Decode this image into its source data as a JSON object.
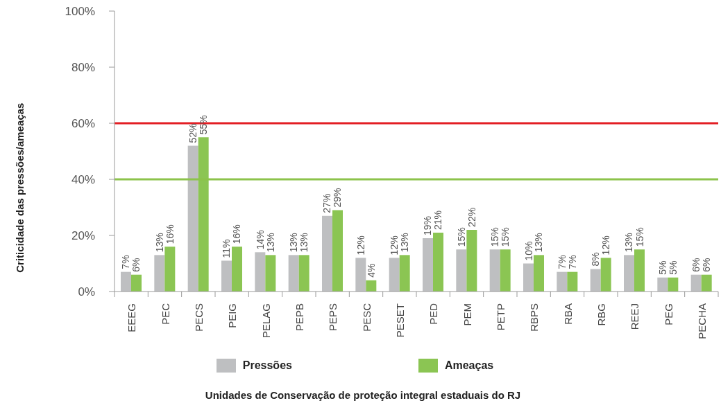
{
  "chart_data": {
    "type": "bar",
    "xlabel": "Unidades de Conservação de proteção integral estaduais do RJ",
    "ylabel": "Criticidade das pressões/ameaças",
    "categories": [
      "EEEG",
      "PEC",
      "PECS",
      "PEIG",
      "PELAG",
      "PEPB",
      "PEPS",
      "PESC",
      "PESET",
      "PED",
      "PEM",
      "PETP",
      "RBPS",
      "RBA",
      "RBG",
      "REEJ",
      "PEG",
      "PECHA"
    ],
    "series": [
      {
        "name": "Pressões",
        "color": "#bebfc1",
        "values": [
          7,
          13,
          52,
          11,
          14,
          13,
          27,
          12,
          12,
          19,
          15,
          15,
          10,
          7,
          8,
          13,
          5,
          6
        ],
        "value_labels": [
          "7%",
          "13%",
          "52%",
          "11%",
          "14%",
          "13%",
          "27%",
          "12%",
          "12%",
          "19%",
          "15%",
          "15%",
          "10%",
          "7%",
          "8%",
          "13%",
          "5%",
          "6%"
        ]
      },
      {
        "name": "Ameaças",
        "color": "#8bc553",
        "values": [
          6,
          16,
          55,
          16,
          13,
          13,
          29,
          4,
          13,
          21,
          22,
          15,
          13,
          7,
          12,
          15,
          5,
          6
        ],
        "value_labels": [
          "6%",
          "16%",
          "55%",
          "16%",
          "13%",
          "13%",
          "29%",
          "4%",
          "13%",
          "21%",
          "22%",
          "15%",
          "13%",
          "7%",
          "12%",
          "15%",
          "5%",
          "6%"
        ]
      }
    ],
    "ylim": [
      0,
      100
    ],
    "yticks": [
      {
        "value": 0,
        "label": "0%"
      },
      {
        "value": 20,
        "label": "20%"
      },
      {
        "value": 40,
        "label": "40%"
      },
      {
        "value": 60,
        "label": "60%"
      },
      {
        "value": 80,
        "label": "80%"
      },
      {
        "value": 100,
        "label": "100%"
      }
    ],
    "ref_lines": [
      {
        "axis": "y",
        "value": 60,
        "color": "#e31e24"
      },
      {
        "axis": "y",
        "value": 40,
        "color": "#8cc34b"
      }
    ],
    "legend": "bottom"
  }
}
